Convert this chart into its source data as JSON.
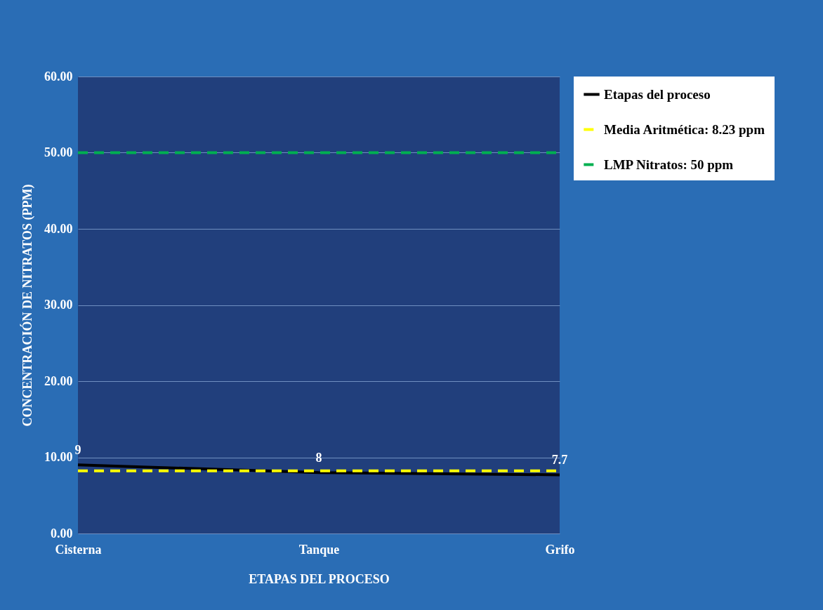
{
  "chart_data": {
    "type": "line",
    "xlabel": "ETAPAS DEL PROCESO",
    "ylabel": "CONCENTRACIÓN DE NITRATOS (PPM)",
    "categories": [
      "Cisterna",
      "Tanque",
      "Grifo"
    ],
    "series": [
      {
        "name": "Etapas del proceso",
        "color": "#000000",
        "values": [
          9,
          8,
          7.7
        ],
        "value_labels": [
          "9",
          "8",
          "7.7"
        ],
        "line_style": "solid"
      },
      {
        "name": "Media Aritmética: 8.23 ppm",
        "color": "#ffff00",
        "values": [
          8.23,
          8.23,
          8.23
        ],
        "line_style": "dashed"
      },
      {
        "name": "LMP Nitratos: 50 ppm",
        "color": "#00b050",
        "values": [
          50,
          50,
          50
        ],
        "line_style": "dashed"
      }
    ],
    "ylim": [
      0,
      60
    ],
    "yticks": [
      {
        "value": 0,
        "label": "0.00"
      },
      {
        "value": 10,
        "label": "10.00"
      },
      {
        "value": 20,
        "label": "20.00"
      },
      {
        "value": 30,
        "label": "30.00"
      },
      {
        "value": 40,
        "label": "40.00"
      },
      {
        "value": 50,
        "label": "50.00"
      },
      {
        "value": 60,
        "label": "60.00"
      }
    ],
    "grid": "y",
    "legend": "right",
    "marker": "none"
  }
}
